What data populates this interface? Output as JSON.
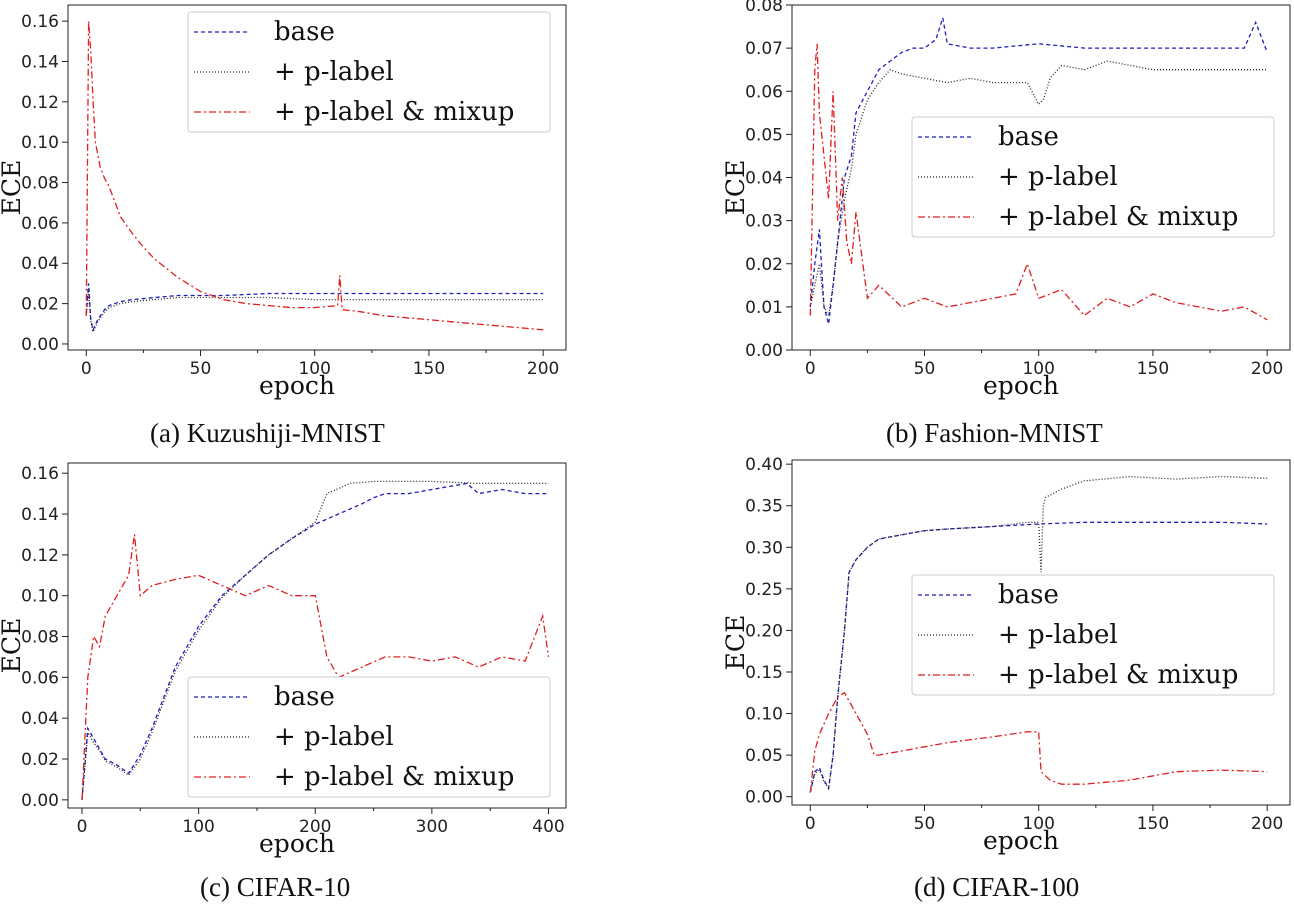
{
  "figure": {
    "captions": [
      "(a) Kuzushiji-MNIST",
      "(b) Fashion-MNIST",
      "(c) CIFAR-10",
      "(d) CIFAR-100"
    ]
  },
  "chart_data": [
    {
      "type": "line",
      "title": "Kuzushiji-MNIST",
      "xlabel": "epoch",
      "ylabel": "ECE",
      "xlim": [
        -8,
        210
      ],
      "ylim": [
        -0.003,
        0.168
      ],
      "xticks": [
        0,
        50,
        100,
        150,
        200
      ],
      "yticks": [
        0.0,
        0.02,
        0.04,
        0.06,
        0.08,
        0.1,
        0.12,
        0.14,
        0.16
      ],
      "ytick_labels": [
        "0.00",
        "0.02",
        "0.04",
        "0.06",
        "0.08",
        "0.10",
        "0.12",
        "0.14",
        "0.16"
      ],
      "legend_position": "top-right",
      "series": [
        {
          "name": "base",
          "color": "#1f1fbf",
          "dash": "4,3",
          "x": [
            0,
            1,
            2,
            3,
            5,
            8,
            10,
            15,
            20,
            30,
            40,
            50,
            60,
            80,
            100,
            120,
            150,
            200
          ],
          "values": [
            0.015,
            0.03,
            0.012,
            0.007,
            0.012,
            0.017,
            0.019,
            0.021,
            0.022,
            0.023,
            0.024,
            0.024,
            0.024,
            0.025,
            0.025,
            0.025,
            0.025,
            0.025
          ]
        },
        {
          "name": "+ p-label",
          "color": "#222222",
          "dash": "1,2",
          "x": [
            0,
            1,
            2,
            3,
            5,
            8,
            10,
            15,
            20,
            30,
            40,
            50,
            60,
            80,
            100,
            120,
            150,
            200
          ],
          "values": [
            0.014,
            0.026,
            0.011,
            0.006,
            0.011,
            0.016,
            0.018,
            0.02,
            0.021,
            0.022,
            0.023,
            0.023,
            0.023,
            0.023,
            0.022,
            0.022,
            0.022,
            0.022
          ]
        },
        {
          "name": "+ p-label & mixup",
          "color": "#e02020",
          "dash": "7,3,2,3",
          "x": [
            0,
            1,
            2,
            3,
            4,
            6,
            8,
            10,
            12,
            15,
            20,
            25,
            30,
            40,
            50,
            60,
            70,
            80,
            90,
            100,
            110,
            111,
            112,
            120,
            130,
            140,
            150,
            160,
            170,
            180,
            190,
            200
          ],
          "values": [
            0.014,
            0.16,
            0.145,
            0.12,
            0.1,
            0.088,
            0.082,
            0.078,
            0.072,
            0.063,
            0.055,
            0.048,
            0.042,
            0.033,
            0.026,
            0.022,
            0.02,
            0.019,
            0.018,
            0.018,
            0.019,
            0.034,
            0.017,
            0.016,
            0.014,
            0.013,
            0.012,
            0.011,
            0.01,
            0.009,
            0.008,
            0.007
          ]
        }
      ]
    },
    {
      "type": "line",
      "title": "Fashion-MNIST",
      "xlabel": "epoch",
      "ylabel": "ECE",
      "xlim": [
        -8,
        210
      ],
      "ylim": [
        0,
        0.08
      ],
      "xticks": [
        0,
        50,
        100,
        150,
        200
      ],
      "yticks": [
        0.0,
        0.01,
        0.02,
        0.03,
        0.04,
        0.05,
        0.06,
        0.07,
        0.08
      ],
      "ytick_labels": [
        "0.00",
        "0.01",
        "0.02",
        "0.03",
        "0.04",
        "0.05",
        "0.06",
        "0.07",
        "0.08"
      ],
      "legend_position": "center-right",
      "series": [
        {
          "name": "base",
          "color": "#1f1fbf",
          "dash": "4,3",
          "x": [
            0,
            2,
            4,
            6,
            8,
            10,
            12,
            15,
            18,
            20,
            25,
            30,
            35,
            40,
            45,
            50,
            55,
            58,
            60,
            70,
            80,
            100,
            120,
            140,
            160,
            180,
            190,
            195,
            200
          ],
          "values": [
            0.01,
            0.02,
            0.028,
            0.01,
            0.006,
            0.015,
            0.025,
            0.04,
            0.045,
            0.055,
            0.06,
            0.065,
            0.067,
            0.069,
            0.07,
            0.07,
            0.072,
            0.077,
            0.071,
            0.07,
            0.07,
            0.071,
            0.07,
            0.07,
            0.07,
            0.07,
            0.07,
            0.076,
            0.069
          ]
        },
        {
          "name": "+ p-label",
          "color": "#222222",
          "dash": "1,2",
          "x": [
            0,
            2,
            4,
            6,
            8,
            10,
            12,
            15,
            18,
            20,
            25,
            30,
            35,
            40,
            50,
            60,
            70,
            80,
            95,
            100,
            102,
            105,
            110,
            120,
            130,
            140,
            150,
            170,
            200
          ],
          "values": [
            0.01,
            0.015,
            0.02,
            0.01,
            0.008,
            0.015,
            0.025,
            0.035,
            0.042,
            0.05,
            0.058,
            0.062,
            0.065,
            0.064,
            0.063,
            0.062,
            0.063,
            0.062,
            0.062,
            0.057,
            0.058,
            0.063,
            0.066,
            0.065,
            0.067,
            0.066,
            0.065,
            0.065,
            0.065
          ]
        },
        {
          "name": "+ p-label & mixup",
          "color": "#e02020",
          "dash": "7,3,2,3",
          "x": [
            0,
            2,
            3,
            4,
            6,
            8,
            10,
            12,
            14,
            16,
            18,
            20,
            25,
            30,
            40,
            50,
            60,
            70,
            80,
            90,
            95,
            100,
            110,
            120,
            130,
            140,
            150,
            160,
            170,
            180,
            190,
            200
          ],
          "values": [
            0.008,
            0.065,
            0.071,
            0.055,
            0.045,
            0.035,
            0.06,
            0.03,
            0.04,
            0.025,
            0.02,
            0.032,
            0.012,
            0.015,
            0.01,
            0.012,
            0.01,
            0.011,
            0.012,
            0.013,
            0.02,
            0.012,
            0.014,
            0.008,
            0.012,
            0.01,
            0.013,
            0.011,
            0.01,
            0.009,
            0.01,
            0.007
          ]
        }
      ]
    },
    {
      "type": "line",
      "title": "CIFAR-10",
      "xlabel": "epoch",
      "ylabel": "ECE",
      "xlim": [
        -12,
        415
      ],
      "ylim": [
        -0.004,
        0.165
      ],
      "xticks": [
        0,
        100,
        200,
        300,
        400
      ],
      "yticks": [
        0.0,
        0.02,
        0.04,
        0.06,
        0.08,
        0.1,
        0.12,
        0.14,
        0.16
      ],
      "ytick_labels": [
        "0.00",
        "0.02",
        "0.04",
        "0.06",
        "0.08",
        "0.10",
        "0.12",
        "0.14",
        "0.16"
      ],
      "legend_position": "bottom-right",
      "series": [
        {
          "name": "base",
          "color": "#1f1fbf",
          "dash": "4,3",
          "x": [
            0,
            5,
            10,
            15,
            20,
            30,
            40,
            50,
            60,
            70,
            80,
            100,
            120,
            140,
            160,
            180,
            200,
            220,
            240,
            250,
            260,
            280,
            300,
            330,
            340,
            360,
            380,
            400
          ],
          "values": [
            0.0,
            0.035,
            0.03,
            0.025,
            0.02,
            0.017,
            0.013,
            0.022,
            0.035,
            0.05,
            0.065,
            0.085,
            0.1,
            0.11,
            0.12,
            0.128,
            0.135,
            0.14,
            0.145,
            0.148,
            0.15,
            0.15,
            0.152,
            0.155,
            0.15,
            0.152,
            0.15,
            0.15
          ]
        },
        {
          "name": "+ p-label",
          "color": "#222222",
          "dash": "1,2",
          "x": [
            0,
            5,
            10,
            15,
            20,
            30,
            40,
            50,
            60,
            70,
            80,
            100,
            120,
            140,
            160,
            180,
            200,
            210,
            230,
            250,
            270,
            300,
            340,
            360,
            400
          ],
          "values": [
            0.0,
            0.033,
            0.028,
            0.024,
            0.019,
            0.016,
            0.012,
            0.02,
            0.033,
            0.048,
            0.063,
            0.083,
            0.099,
            0.11,
            0.12,
            0.128,
            0.136,
            0.15,
            0.155,
            0.156,
            0.156,
            0.156,
            0.155,
            0.155,
            0.155
          ]
        },
        {
          "name": "+ p-label & mixup",
          "color": "#e02020",
          "dash": "7,3,2,3",
          "x": [
            0,
            5,
            10,
            15,
            20,
            30,
            40,
            45,
            50,
            60,
            80,
            100,
            120,
            140,
            160,
            180,
            190,
            200,
            210,
            220,
            240,
            260,
            280,
            300,
            320,
            340,
            360,
            380,
            395,
            400
          ],
          "values": [
            0.0,
            0.06,
            0.08,
            0.075,
            0.09,
            0.1,
            0.11,
            0.13,
            0.1,
            0.105,
            0.108,
            0.11,
            0.105,
            0.1,
            0.105,
            0.1,
            0.1,
            0.1,
            0.07,
            0.06,
            0.065,
            0.07,
            0.07,
            0.068,
            0.07,
            0.065,
            0.07,
            0.068,
            0.09,
            0.07
          ]
        }
      ]
    },
    {
      "type": "line",
      "title": "CIFAR-100",
      "xlabel": "epoch",
      "ylabel": "ECE",
      "xlim": [
        -8,
        210
      ],
      "ylim": [
        -0.01,
        0.405
      ],
      "xticks": [
        0,
        50,
        100,
        150,
        200
      ],
      "yticks": [
        0.0,
        0.05,
        0.1,
        0.15,
        0.2,
        0.25,
        0.3,
        0.35,
        0.4
      ],
      "ytick_labels": [
        "0.00",
        "0.05",
        "0.10",
        "0.15",
        "0.20",
        "0.25",
        "0.30",
        "0.35",
        "0.40"
      ],
      "legend_position": "center-right",
      "series": [
        {
          "name": "base",
          "color": "#1f1fbf",
          "dash": "4,3",
          "x": [
            0,
            2,
            4,
            6,
            8,
            10,
            12,
            15,
            17,
            20,
            25,
            30,
            40,
            50,
            60,
            80,
            100,
            120,
            140,
            160,
            180,
            200
          ],
          "values": [
            0.005,
            0.03,
            0.035,
            0.02,
            0.01,
            0.05,
            0.12,
            0.2,
            0.27,
            0.285,
            0.3,
            0.31,
            0.315,
            0.32,
            0.322,
            0.325,
            0.328,
            0.33,
            0.33,
            0.33,
            0.33,
            0.328
          ]
        },
        {
          "name": "+ p-label",
          "color": "#222222",
          "dash": "1,2",
          "x": [
            0,
            2,
            4,
            6,
            8,
            10,
            12,
            15,
            17,
            20,
            25,
            30,
            40,
            50,
            60,
            80,
            95,
            100,
            101,
            102,
            103,
            110,
            120,
            140,
            160,
            180,
            200
          ],
          "values": [
            0.005,
            0.028,
            0.032,
            0.018,
            0.01,
            0.05,
            0.12,
            0.2,
            0.27,
            0.285,
            0.3,
            0.31,
            0.315,
            0.32,
            0.322,
            0.325,
            0.33,
            0.33,
            0.27,
            0.35,
            0.36,
            0.37,
            0.38,
            0.385,
            0.382,
            0.385,
            0.383
          ]
        },
        {
          "name": "+ p-label & mixup",
          "color": "#e02020",
          "dash": "7,3,2,3",
          "x": [
            0,
            2,
            4,
            8,
            12,
            15,
            20,
            25,
            28,
            30,
            40,
            50,
            60,
            80,
            95,
            100,
            101,
            105,
            110,
            120,
            140,
            160,
            180,
            200
          ],
          "values": [
            0.005,
            0.055,
            0.075,
            0.1,
            0.12,
            0.125,
            0.1,
            0.075,
            0.05,
            0.05,
            0.055,
            0.06,
            0.065,
            0.072,
            0.078,
            0.078,
            0.03,
            0.02,
            0.015,
            0.015,
            0.02,
            0.03,
            0.032,
            0.03
          ]
        }
      ]
    }
  ]
}
